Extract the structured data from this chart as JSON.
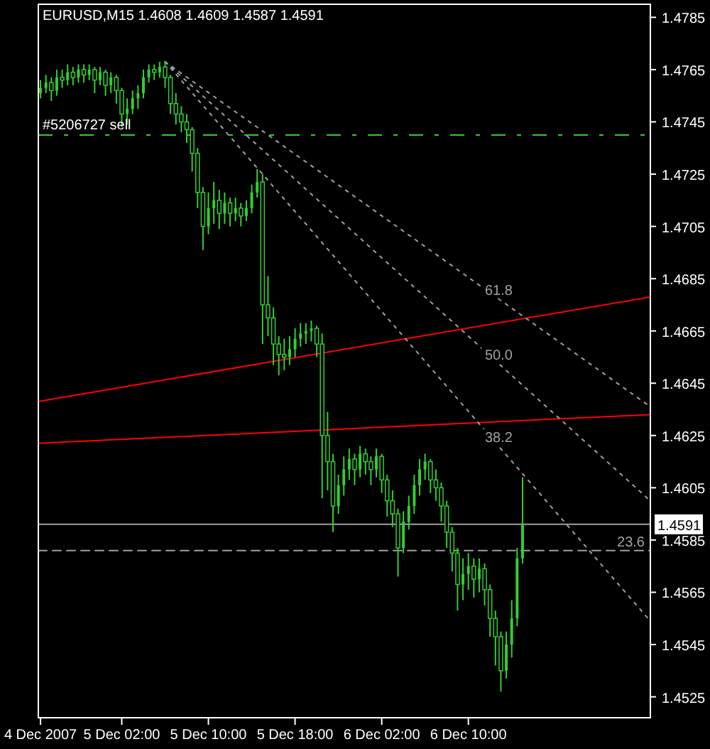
{
  "chart_data": {
    "type": "candlestick",
    "title": "EURUSD,M15  1.4608 1.4609 1.4587 1.4591",
    "color": "#32cd32",
    "x": [
      "2007-12-04T18:30",
      "2007-12-04T19:00",
      "2007-12-04T19:30",
      "2007-12-04T20:00",
      "2007-12-04T20:30",
      "2007-12-04T21:00",
      "2007-12-04T21:30",
      "2007-12-04T22:00",
      "2007-12-04T22:30",
      "2007-12-04T23:00",
      "2007-12-04T23:30",
      "2007-12-05T00:00",
      "2007-12-05T00:30",
      "2007-12-05T01:00",
      "2007-12-05T01:30",
      "2007-12-05T02:00",
      "2007-12-05T02:30",
      "2007-12-05T03:00",
      "2007-12-05T03:30",
      "2007-12-05T04:00",
      "2007-12-05T04:30",
      "2007-12-05T05:00",
      "2007-12-05T05:30",
      "2007-12-05T06:00",
      "2007-12-05T06:30",
      "2007-12-05T07:00",
      "2007-12-05T07:30",
      "2007-12-05T08:00",
      "2007-12-05T08:30",
      "2007-12-05T09:00",
      "2007-12-05T09:30",
      "2007-12-05T10:00",
      "2007-12-05T10:30",
      "2007-12-05T11:00",
      "2007-12-05T11:30",
      "2007-12-05T12:00",
      "2007-12-05T12:30",
      "2007-12-05T13:00",
      "2007-12-05T13:30",
      "2007-12-05T14:00",
      "2007-12-05T14:30",
      "2007-12-05T15:00",
      "2007-12-05T15:30",
      "2007-12-05T16:00",
      "2007-12-05T16:30",
      "2007-12-05T17:00",
      "2007-12-05T17:30",
      "2007-12-05T18:00",
      "2007-12-05T18:30",
      "2007-12-05T19:00",
      "2007-12-05T19:30",
      "2007-12-05T20:00",
      "2007-12-05T20:30",
      "2007-12-05T21:00",
      "2007-12-05T21:30",
      "2007-12-05T22:00",
      "2007-12-05T22:30",
      "2007-12-05T23:00",
      "2007-12-05T23:30",
      "2007-12-06T00:00",
      "2007-12-06T00:30",
      "2007-12-06T01:00",
      "2007-12-06T01:30",
      "2007-12-06T02:00",
      "2007-12-06T02:30",
      "2007-12-06T03:00",
      "2007-12-06T03:30",
      "2007-12-06T04:00",
      "2007-12-06T04:30",
      "2007-12-06T05:00",
      "2007-12-06T05:30",
      "2007-12-06T06:00",
      "2007-12-06T06:30",
      "2007-12-06T07:00",
      "2007-12-06T07:30",
      "2007-12-06T08:00",
      "2007-12-06T08:30",
      "2007-12-06T09:00",
      "2007-12-06T09:30",
      "2007-12-06T10:00",
      "2007-12-06T10:30",
      "2007-12-06T11:00",
      "2007-12-06T11:30",
      "2007-12-06T12:00",
      "2007-12-06T12:30",
      "2007-12-06T13:00",
      "2007-12-06T13:30",
      "2007-12-06T14:00",
      "2007-12-06T14:30",
      "2007-12-06T15:00"
    ],
    "ohlc": [
      [
        1.4756,
        1.4761,
        1.4754,
        1.4758
      ],
      [
        1.4758,
        1.4763,
        1.4756,
        1.476
      ],
      [
        1.476,
        1.4762,
        1.4753,
        1.4757
      ],
      [
        1.4757,
        1.4765,
        1.4755,
        1.4762
      ],
      [
        1.4762,
        1.4765,
        1.4758,
        1.4761
      ],
      [
        1.4761,
        1.4767,
        1.4759,
        1.4764
      ],
      [
        1.4764,
        1.4766,
        1.4759,
        1.4762
      ],
      [
        1.4762,
        1.4767,
        1.476,
        1.4765
      ],
      [
        1.4765,
        1.4767,
        1.476,
        1.4763
      ],
      [
        1.4763,
        1.4767,
        1.4761,
        1.4765
      ],
      [
        1.4765,
        1.4766,
        1.4756,
        1.4761
      ],
      [
        1.4761,
        1.4766,
        1.4759,
        1.4764
      ],
      [
        1.4764,
        1.4765,
        1.4755,
        1.4759
      ],
      [
        1.4759,
        1.4764,
        1.4756,
        1.4762
      ],
      [
        1.4762,
        1.4763,
        1.4752,
        1.4757
      ],
      [
        1.4757,
        1.4758,
        1.4743,
        1.4748
      ],
      [
        1.4748,
        1.4754,
        1.4744,
        1.475
      ],
      [
        1.475,
        1.4757,
        1.4748,
        1.4754
      ],
      [
        1.4754,
        1.4759,
        1.475,
        1.4756
      ],
      [
        1.4756,
        1.4765,
        1.4754,
        1.4762
      ],
      [
        1.4762,
        1.4767,
        1.476,
        1.4765
      ],
      [
        1.4765,
        1.4767,
        1.4761,
        1.4764
      ],
      [
        1.4764,
        1.4768,
        1.4762,
        1.4766
      ],
      [
        1.4766,
        1.4768,
        1.4758,
        1.4762
      ],
      [
        1.4762,
        1.4763,
        1.4748,
        1.4752
      ],
      [
        1.4752,
        1.4756,
        1.4744,
        1.4748
      ],
      [
        1.4748,
        1.4751,
        1.4741,
        1.4745
      ],
      [
        1.4745,
        1.4748,
        1.4737,
        1.4742
      ],
      [
        1.4742,
        1.4743,
        1.4726,
        1.4733
      ],
      [
        1.4733,
        1.4735,
        1.4712,
        1.4718
      ],
      [
        1.4718,
        1.472,
        1.4696,
        1.4705
      ],
      [
        1.4705,
        1.4718,
        1.4702,
        1.4712
      ],
      [
        1.4712,
        1.4722,
        1.4706,
        1.4715
      ],
      [
        1.4715,
        1.4719,
        1.4704,
        1.471
      ],
      [
        1.471,
        1.4718,
        1.4706,
        1.4714
      ],
      [
        1.4714,
        1.4716,
        1.4705,
        1.471
      ],
      [
        1.471,
        1.4716,
        1.4707,
        1.4712
      ],
      [
        1.4712,
        1.4714,
        1.4705,
        1.4709
      ],
      [
        1.4709,
        1.4715,
        1.4707,
        1.4712
      ],
      [
        1.4712,
        1.4721,
        1.471,
        1.4718
      ],
      [
        1.4718,
        1.4727,
        1.4716,
        1.4722
      ],
      [
        1.4722,
        1.4725,
        1.466,
        1.4675
      ],
      [
        1.4675,
        1.4686,
        1.4663,
        1.467
      ],
      [
        1.467,
        1.4674,
        1.4652,
        1.466
      ],
      [
        1.466,
        1.4663,
        1.4648,
        1.4656
      ],
      [
        1.4656,
        1.4662,
        1.465,
        1.4655
      ],
      [
        1.4655,
        1.4663,
        1.4652,
        1.4658
      ],
      [
        1.4658,
        1.4666,
        1.4655,
        1.4662
      ],
      [
        1.4662,
        1.4668,
        1.4659,
        1.4664
      ],
      [
        1.4664,
        1.4668,
        1.466,
        1.4665
      ],
      [
        1.4665,
        1.4669,
        1.4661,
        1.4666
      ],
      [
        1.4666,
        1.4667,
        1.4655,
        1.466
      ],
      [
        1.466,
        1.4664,
        1.4601,
        1.4625
      ],
      [
        1.4625,
        1.4634,
        1.4604,
        1.4615
      ],
      [
        1.4615,
        1.4618,
        1.4588,
        1.4598
      ],
      [
        1.4598,
        1.461,
        1.4595,
        1.4606
      ],
      [
        1.4606,
        1.4617,
        1.4602,
        1.4612
      ],
      [
        1.4612,
        1.462,
        1.4608,
        1.4616
      ],
      [
        1.4616,
        1.4618,
        1.4606,
        1.4612
      ],
      [
        1.4612,
        1.4621,
        1.4609,
        1.4618
      ],
      [
        1.4618,
        1.462,
        1.461,
        1.4615
      ],
      [
        1.4615,
        1.4617,
        1.4606,
        1.4612
      ],
      [
        1.4612,
        1.462,
        1.4609,
        1.4617
      ],
      [
        1.4617,
        1.4618,
        1.4603,
        1.4608
      ],
      [
        1.4608,
        1.461,
        1.4594,
        1.46
      ],
      [
        1.46,
        1.4604,
        1.459,
        1.4595
      ],
      [
        1.4595,
        1.4597,
        1.4571,
        1.4582
      ],
      [
        1.4582,
        1.4596,
        1.458,
        1.4592
      ],
      [
        1.4592,
        1.4602,
        1.4589,
        1.4598
      ],
      [
        1.4598,
        1.461,
        1.4595,
        1.4606
      ],
      [
        1.4606,
        1.4616,
        1.4602,
        1.4612
      ],
      [
        1.4612,
        1.4618,
        1.4608,
        1.4615
      ],
      [
        1.4615,
        1.4616,
        1.4603,
        1.4608
      ],
      [
        1.4608,
        1.4612,
        1.46,
        1.4605
      ],
      [
        1.4605,
        1.4607,
        1.4592,
        1.4598
      ],
      [
        1.4598,
        1.46,
        1.4582,
        1.4588
      ],
      [
        1.4588,
        1.459,
        1.4573,
        1.458
      ],
      [
        1.458,
        1.4582,
        1.4558,
        1.4568
      ],
      [
        1.4568,
        1.4578,
        1.4562,
        1.4572
      ],
      [
        1.4572,
        1.458,
        1.4566,
        1.4575
      ],
      [
        1.4575,
        1.4578,
        1.4563,
        1.457
      ],
      [
        1.457,
        1.4578,
        1.4565,
        1.4574
      ],
      [
        1.4574,
        1.4576,
        1.456,
        1.4566
      ],
      [
        1.4566,
        1.4568,
        1.4548,
        1.4555
      ],
      [
        1.4555,
        1.4558,
        1.4537,
        1.4548
      ],
      [
        1.4548,
        1.455,
        1.4527,
        1.4535
      ],
      [
        1.4535,
        1.455,
        1.4532,
        1.4545
      ],
      [
        1.4545,
        1.4562,
        1.454,
        1.4555
      ],
      [
        1.4555,
        1.4582,
        1.4552,
        1.4578
      ],
      [
        1.4578,
        1.4609,
        1.4576,
        1.4591
      ]
    ],
    "series": [
      {
        "type": "line",
        "color": "#ff0000",
        "line_style": "solid",
        "x": [
          "2007-12-04T18:18",
          "2007-12-07T02:48"
        ],
        "values": [
          1.4638,
          1.4678
        ]
      },
      {
        "type": "line",
        "color": "#ff0000",
        "line_style": "solid",
        "x": [
          "2007-12-04T18:18",
          "2007-12-07T02:48"
        ],
        "values": [
          1.4622,
          1.4633
        ]
      },
      {
        "type": "line",
        "name": "61.8",
        "color": "#a0a0a0",
        "line_style": "dotted",
        "x": [
          "2007-12-05T06:00",
          "2007-12-07T02:48"
        ],
        "values": [
          1.4768,
          1.4636
        ]
      },
      {
        "type": "line",
        "name": "50.0",
        "color": "#a0a0a0",
        "line_style": "dotted",
        "x": [
          "2007-12-05T06:00",
          "2007-12-07T02:48"
        ],
        "values": [
          1.4768,
          1.46
        ]
      },
      {
        "type": "line",
        "name": "38.2",
        "color": "#a0a0a0",
        "line_style": "dotted",
        "x": [
          "2007-12-05T06:00",
          "2007-12-07T02:48"
        ],
        "values": [
          1.4768,
          1.4554
        ]
      },
      {
        "type": "line",
        "name": "23.6",
        "color": "#a0a0a0",
        "line_style": "dashed",
        "x": [
          "2007-12-04T18:18",
          "2007-12-07T02:48"
        ],
        "values": [
          1.4581,
          1.4581
        ]
      }
    ],
    "ref_lines": [
      {
        "axis": "y",
        "value": 1.474,
        "label": "#5206727 sell",
        "color": "#32cd32",
        "line_style": "dashed"
      },
      {
        "axis": "y",
        "value": 1.4591,
        "label": "1.4591",
        "color": "#a0a0a0",
        "line_style": "solid"
      }
    ],
    "xlim": [
      "2007-12-04T18:18",
      "2007-12-07T02:48"
    ],
    "ylim": [
      1.4517,
      1.479
    ],
    "xticks": [
      {
        "value": "2007-12-04T18:30",
        "label": "4 Dec 2007"
      },
      {
        "value": "2007-12-05T02:00",
        "label": "5 Dec 02:00"
      },
      {
        "value": "2007-12-05T10:00",
        "label": "5 Dec 10:00"
      },
      {
        "value": "2007-12-05T18:00",
        "label": "5 Dec 18:00"
      },
      {
        "value": "2007-12-06T02:00",
        "label": "6 Dec 02:00"
      },
      {
        "value": "2007-12-06T10:00",
        "label": "6 Dec 10:00"
      }
    ],
    "yticks": [
      1.4525,
      1.4545,
      1.4565,
      1.4585,
      1.4605,
      1.4625,
      1.4645,
      1.4665,
      1.4685,
      1.4705,
      1.4725,
      1.4745,
      1.4765,
      1.4785
    ],
    "grid": false
  }
}
